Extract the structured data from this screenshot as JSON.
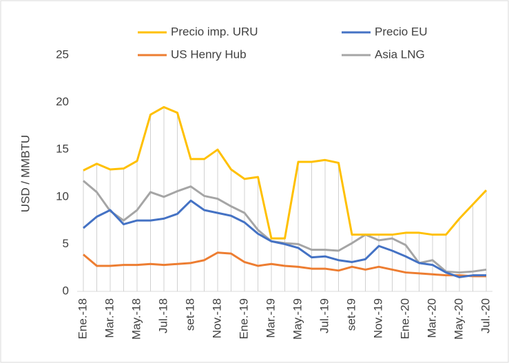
{
  "chart_data": {
    "type": "line",
    "y_label": "USD / MMBTU",
    "categories": [
      "Ene.-18",
      null,
      "Mar.-18",
      null,
      "May.-18",
      null,
      "Jul.-18",
      null,
      "set-18",
      null,
      "Nov.-18",
      null,
      "Ene.-19",
      null,
      "Mar.-19",
      null,
      "May.-19",
      null,
      "Jul.-19",
      null,
      "set-19",
      null,
      "Nov.-19",
      null,
      "Ene.-20",
      null,
      "Mar.-20",
      null,
      "May.-20",
      null,
      "Jul.-20"
    ],
    "series": [
      {
        "name": "Precio imp. URU",
        "color": "#FFC000",
        "values": [
          12.8,
          13.5,
          12.9,
          13.0,
          13.8,
          18.7,
          19.5,
          18.9,
          14.0,
          14.0,
          15.0,
          12.9,
          11.9,
          12.1,
          5.6,
          5.6,
          13.7,
          13.7,
          13.9,
          13.6,
          6.0,
          6.0,
          6.0,
          6.0,
          6.2,
          6.2,
          6.0,
          6.0,
          7.7,
          9.2,
          10.7
        ]
      },
      {
        "name": "Precio EU",
        "color": "#4472C4",
        "values": [
          6.7,
          7.9,
          8.6,
          7.1,
          7.5,
          7.5,
          7.7,
          8.2,
          9.6,
          8.6,
          8.3,
          8.0,
          7.3,
          6.1,
          5.3,
          5.0,
          4.6,
          3.6,
          3.7,
          3.3,
          3.1,
          3.4,
          4.8,
          4.3,
          3.7,
          3.0,
          2.8,
          2.0,
          1.5,
          1.7,
          1.7
        ]
      },
      {
        "name": "US Henry Hub",
        "color": "#ED7D31",
        "values": [
          3.9,
          2.7,
          2.7,
          2.8,
          2.8,
          2.9,
          2.8,
          2.9,
          3.0,
          3.3,
          4.1,
          4.0,
          3.1,
          2.7,
          2.9,
          2.7,
          2.6,
          2.4,
          2.4,
          2.2,
          2.6,
          2.3,
          2.6,
          2.3,
          2.0,
          1.9,
          1.8,
          1.7,
          1.7,
          1.6,
          1.6
        ]
      },
      {
        "name": "Asia LNG",
        "color": "#A5A5A5",
        "values": [
          11.7,
          10.5,
          8.5,
          7.5,
          8.6,
          10.5,
          10.0,
          10.6,
          11.1,
          10.1,
          9.8,
          9.0,
          8.3,
          6.5,
          5.3,
          5.1,
          5.0,
          4.4,
          4.4,
          4.3,
          5.1,
          6.0,
          5.4,
          5.6,
          4.9,
          3.0,
          3.3,
          2.1,
          2.0,
          2.1,
          2.3
        ]
      }
    ],
    "ylim": [
      0,
      25
    ],
    "yticks": [
      0,
      5,
      10,
      15,
      20,
      25
    ],
    "drop_lines": true
  }
}
